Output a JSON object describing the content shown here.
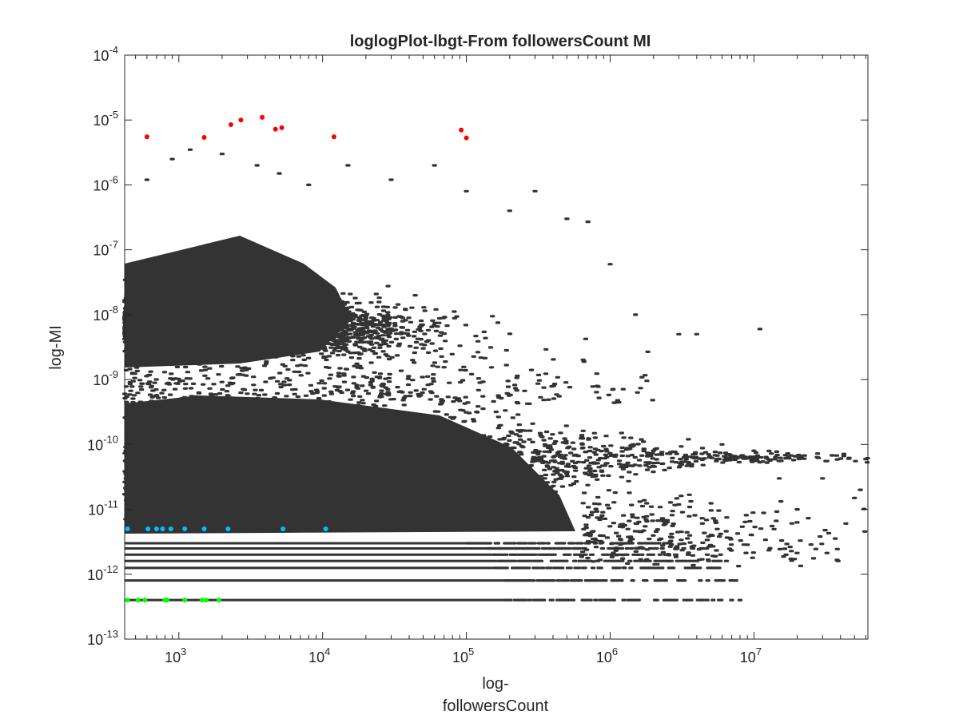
{
  "chart_data": {
    "type": "scatter",
    "title": "loglogPlot-lbgt-From followersCount MI",
    "xlabel_lines": [
      "log-",
      "followersCount"
    ],
    "ylabel": "log-MI",
    "xscale": "log",
    "yscale": "log",
    "xlim": [
      420,
      62000000
    ],
    "ylim": [
      1e-13,
      0.0001
    ],
    "grid": false,
    "legend": "none",
    "x_ticks": [
      {
        "base": "10",
        "exp": "3",
        "value": 1000
      },
      {
        "base": "10",
        "exp": "4",
        "value": 10000
      },
      {
        "base": "10",
        "exp": "5",
        "value": 100000
      },
      {
        "base": "10",
        "exp": "6",
        "value": 1000000
      },
      {
        "base": "10",
        "exp": "7",
        "value": 10000000
      }
    ],
    "y_ticks": [
      {
        "base": "10",
        "exp": "-13",
        "value": 1e-13
      },
      {
        "base": "10",
        "exp": "-12",
        "value": 1e-12
      },
      {
        "base": "10",
        "exp": "-11",
        "value": 1e-11
      },
      {
        "base": "10",
        "exp": "-10",
        "value": 1e-10
      },
      {
        "base": "10",
        "exp": "-9",
        "value": 1e-09
      },
      {
        "base": "10",
        "exp": "-8",
        "value": 1e-08
      },
      {
        "base": "10",
        "exp": "-7",
        "value": 1e-07
      },
      {
        "base": "10",
        "exp": "-6",
        "value": 1e-06
      },
      {
        "base": "10",
        "exp": "-5",
        "value": 1e-05
      },
      {
        "base": "10",
        "exp": "-4",
        "value": 0.0001
      }
    ],
    "series": [
      {
        "color": "#333333",
        "description_role": "bulk points",
        "clusters": [
          {
            "x_range": [
              420,
              50000
            ],
            "y_range": [
              1.5e-09,
              2e-07
            ]
          },
          {
            "x_range": [
              420,
              1000000
            ],
            "y_range": [
              4e-12,
              8e-10
            ]
          }
        ],
        "bands": [
          {
            "y": 3e-12,
            "x_range": [
              420,
              3000000
            ]
          },
          {
            "y": 2.5e-12,
            "x_range": [
              420,
              5000000
            ]
          },
          {
            "y": 2e-12,
            "x_range": [
              420,
              6000000
            ]
          },
          {
            "y": 1.6e-12,
            "x_range": [
              420,
              7000000
            ]
          },
          {
            "y": 1.25e-12,
            "x_range": [
              420,
              6000000
            ]
          },
          {
            "y": 8e-13,
            "x_range": [
              420,
              8000000
            ]
          },
          {
            "y": 4e-13,
            "x_range": [
              420,
              8000000
            ]
          }
        ],
        "sample_points": [
          [
            600,
            1.2e-06
          ],
          [
            900,
            2.5e-06
          ],
          [
            1200,
            3.5e-06
          ],
          [
            2000,
            3e-06
          ],
          [
            3500,
            2e-06
          ],
          [
            5000,
            1.5e-06
          ],
          [
            8000,
            1e-06
          ],
          [
            15000,
            2e-06
          ],
          [
            30000,
            1.2e-06
          ],
          [
            60000,
            2e-06
          ],
          [
            100000,
            8e-07
          ],
          [
            200000,
            4e-07
          ],
          [
            300000,
            8e-07
          ],
          [
            500000,
            3e-07
          ],
          [
            700000,
            2.7e-07
          ],
          [
            1000000,
            6e-08
          ],
          [
            1500000,
            1e-08
          ],
          [
            3000000,
            5e-09
          ],
          [
            4000000,
            5e-09
          ],
          [
            11000000,
            6e-09
          ],
          [
            1200000,
            1.5e-10
          ],
          [
            2000000,
            8e-11
          ],
          [
            3500000,
            1.2e-10
          ],
          [
            6000000,
            1e-10
          ],
          [
            10000000,
            8e-11
          ],
          [
            15000000,
            3e-11
          ],
          [
            30000000,
            3e-11
          ],
          [
            50000000,
            1.5e-11
          ],
          [
            55000000,
            2e-11
          ],
          [
            20000000,
            1e-11
          ]
        ]
      },
      {
        "color": "#ff0000",
        "points": [
          [
            600,
            5.5e-06
          ],
          [
            1500,
            5.4e-06
          ],
          [
            2300,
            8.5e-06
          ],
          [
            2700,
            1e-05
          ],
          [
            3800,
            1.1e-05
          ],
          [
            4700,
            7.2e-06
          ],
          [
            5200,
            7.6e-06
          ],
          [
            12000,
            5.5e-06
          ],
          [
            92000,
            7e-06
          ],
          [
            100000,
            5.3e-06
          ]
        ]
      },
      {
        "color": "#00bfff",
        "points": [
          [
            440,
            5e-12
          ],
          [
            610,
            5e-12
          ],
          [
            700,
            5e-12
          ],
          [
            770,
            5e-12
          ],
          [
            880,
            5e-12
          ],
          [
            1100,
            5e-12
          ],
          [
            1500,
            5e-12
          ],
          [
            2200,
            5e-12
          ],
          [
            5300,
            5e-12
          ],
          [
            10500,
            5e-12
          ]
        ]
      },
      {
        "color": "#00ff00",
        "points": [
          [
            440,
            4e-13
          ],
          [
            520,
            4e-13
          ],
          [
            580,
            4e-13
          ],
          [
            800,
            4e-13
          ],
          [
            830,
            4e-13
          ],
          [
            1100,
            4e-13
          ],
          [
            1450,
            4e-13
          ],
          [
            1550,
            4e-13
          ],
          [
            1900,
            4e-13
          ]
        ]
      }
    ]
  }
}
